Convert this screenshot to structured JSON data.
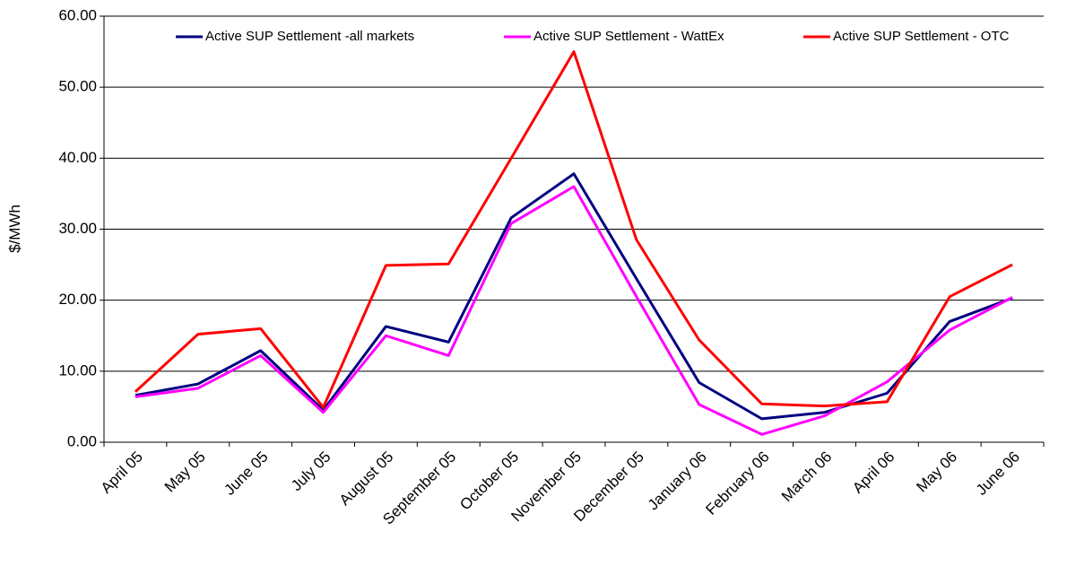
{
  "chart_data": {
    "type": "line",
    "y_label": "$/MWh",
    "categories": [
      "April 05",
      "May  05",
      "June 05",
      "July 05",
      "August 05",
      "September 05",
      "October 05",
      "November 05",
      "December 05",
      "January 06",
      "February 06",
      "March 06",
      "April 06",
      "May 06",
      "June 06"
    ],
    "series": [
      {
        "name": "Active SUP Settlement -all markets",
        "color": "#000080",
        "values": [
          6.6,
          8.2,
          12.9,
          4.5,
          16.3,
          14.1,
          31.6,
          37.8,
          23.0,
          8.4,
          3.3,
          4.2,
          6.9,
          17.0,
          20.3
        ]
      },
      {
        "name": "Active SUP Settlement - WattEx",
        "color": "#ff00ff",
        "values": [
          6.4,
          7.6,
          12.2,
          4.2,
          15.0,
          12.2,
          30.8,
          36.0,
          20.5,
          5.3,
          1.1,
          3.7,
          8.5,
          15.8,
          20.4
        ]
      },
      {
        "name": "Active SUP Settlement - OTC",
        "color": "#ff0000",
        "values": [
          7.1,
          15.2,
          16.0,
          4.9,
          24.9,
          25.1,
          40.0,
          55.0,
          28.5,
          14.4,
          5.4,
          5.1,
          5.7,
          20.5,
          25.0
        ]
      }
    ],
    "ylim": [
      0,
      60
    ],
    "yticks": [
      {
        "value": 0,
        "label": "0.00"
      },
      {
        "value": 10,
        "label": "10.00"
      },
      {
        "value": 20,
        "label": "20.00"
      },
      {
        "value": 30,
        "label": "30.00"
      },
      {
        "value": 40,
        "label": "40.00"
      },
      {
        "value": 50,
        "label": "50.00"
      },
      {
        "value": 60,
        "label": "60.00"
      }
    ],
    "grid": true,
    "legend": "top"
  }
}
